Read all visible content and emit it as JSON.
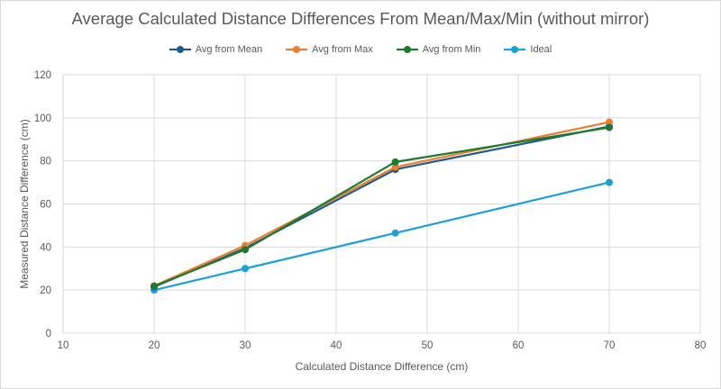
{
  "chart_data": {
    "type": "scatter",
    "title": "Average Calculated Distance Differences From Mean/Max/Min (without mirror)",
    "xlabel": "Calculated Distance Difference (cm)",
    "ylabel": "Measured Distance Difference (cm)",
    "xlim": [
      10,
      80
    ],
    "ylim": [
      0,
      120
    ],
    "xticks": [
      10,
      20,
      30,
      40,
      50,
      60,
      70,
      80
    ],
    "yticks": [
      0,
      20,
      40,
      60,
      80,
      100,
      120
    ],
    "grid": true,
    "legend_position": "top",
    "x": [
      20,
      30,
      46.5,
      70
    ],
    "series": [
      {
        "name": "Avg from Mean",
        "color": "#1f5b8c",
        "values": [
          21.5,
          39.5,
          76,
          96
        ]
      },
      {
        "name": "Avg from Max",
        "color": "#ed7d31",
        "values": [
          22,
          40.7,
          77.1,
          98
        ]
      },
      {
        "name": "Avg from Min",
        "color": "#1e7a2e",
        "values": [
          21.8,
          38.8,
          79.5,
          95.5
        ]
      },
      {
        "name": "Ideal",
        "color": "#1aa1d8",
        "values": [
          20,
          30,
          46.5,
          70
        ]
      }
    ]
  }
}
